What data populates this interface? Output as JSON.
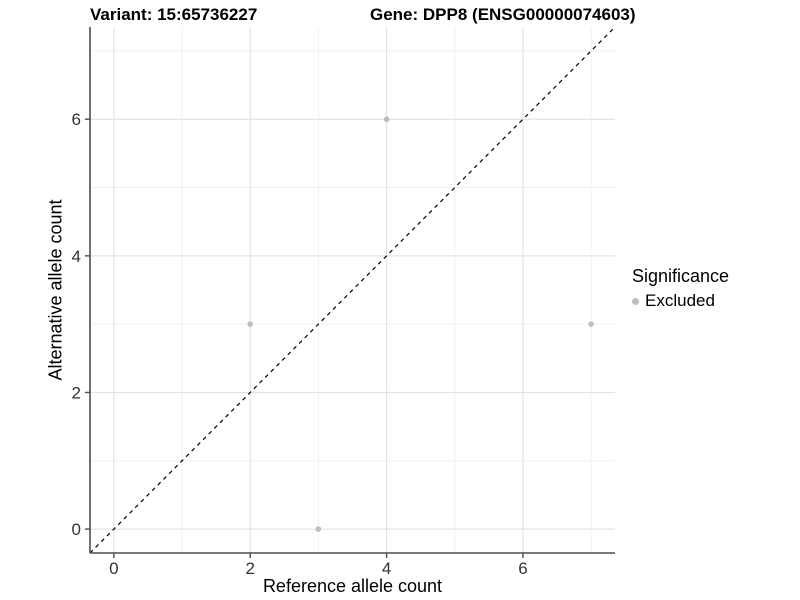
{
  "chart_data": {
    "type": "scatter",
    "title_left": "Variant: 15:65736227",
    "title_right": "Gene: DPP8 (ENSG00000074603)",
    "xlabel": "Reference allele count",
    "ylabel": "Alternative allele count",
    "xlim": [
      -0.35,
      7.35
    ],
    "ylim": [
      -0.35,
      7.35
    ],
    "x_tick_labels": [
      "0",
      "2",
      "4",
      "6"
    ],
    "y_tick_labels": [
      "0",
      "2",
      "4",
      "6"
    ],
    "major_ticks": [
      0,
      2,
      4,
      6
    ],
    "minor_gridlines": [
      1,
      3,
      5,
      7
    ],
    "grid": true,
    "points": [
      {
        "x": 2,
        "y": 3,
        "series": "Excluded"
      },
      {
        "x": 3,
        "y": 0,
        "series": "Excluded"
      },
      {
        "x": 4,
        "y": 6,
        "series": "Excluded"
      },
      {
        "x": 7,
        "y": 3,
        "series": "Excluded"
      }
    ],
    "reference_line": {
      "type": "identity",
      "slope": 1,
      "intercept": 0,
      "style": "dashed",
      "color": "#000000"
    },
    "legend": {
      "title": "Significance",
      "position": "right",
      "items": [
        {
          "label": "Excluded",
          "color": "#bebebe"
        }
      ]
    }
  },
  "colors": {
    "point": "#bebebe",
    "grid_major": "#e3e3e3",
    "grid_minor": "#f0f0f0",
    "axis_line": "#4d4d4d",
    "tick_label": "#333333"
  }
}
